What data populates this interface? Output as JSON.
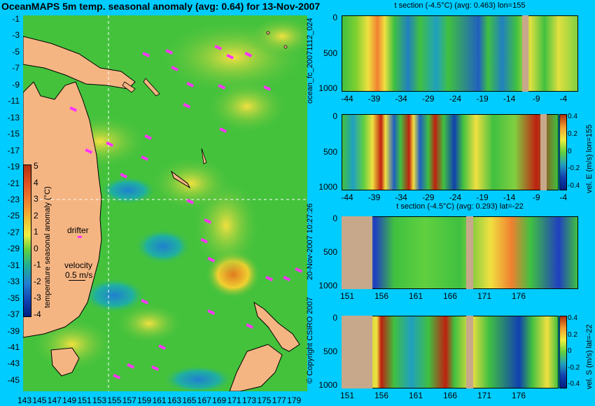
{
  "title": "OceanMAPS 5m temp. seasonal anomaly (avg: 0.64) for 13-Nov-2007",
  "map": {
    "lat_ticks": [
      "-1",
      "-3",
      "-5",
      "-7",
      "-9",
      "-11",
      "-13",
      "-15",
      "-17",
      "-19",
      "-21",
      "-23",
      "-25",
      "-27",
      "-29",
      "-31",
      "-33",
      "-35",
      "-37",
      "-39",
      "-41",
      "-43",
      "-45"
    ],
    "lon_ticks": [
      "143",
      "145",
      "147",
      "149",
      "151",
      "153",
      "155",
      "157",
      "159",
      "161",
      "163",
      "165",
      "167",
      "169",
      "171",
      "173",
      "175",
      "177",
      "179"
    ],
    "colorbar_label": "temperature seasonal anomaly (°C)",
    "colorbar_ticks": [
      "5",
      "4",
      "3",
      "2",
      "1",
      "0",
      "-1",
      "-2",
      "-3",
      "-4"
    ],
    "legend_drifter": "drifter",
    "legend_velocity": "velocity",
    "legend_speed": "0.5 m/s"
  },
  "sections": {
    "p1": {
      "title": "t section (-4.5°C) (avg: 0.463) lon=155",
      "yticks": [
        "0",
        "500",
        "1000"
      ],
      "xticks": [
        "-44",
        "-39",
        "-34",
        "-29",
        "-24",
        "-19",
        "-14",
        "-9",
        "-4"
      ]
    },
    "p2": {
      "yticks": [
        "0",
        "500",
        "1000"
      ],
      "xticks": [
        "-44",
        "-39",
        "-34",
        "-29",
        "-24",
        "-19",
        "-14",
        "-9",
        "-4"
      ],
      "cbar_label": "vel. E (m/s) lon=155",
      "cbar_ticks": [
        "0.4",
        "0.2",
        "0",
        "-0.2",
        "-0.4"
      ]
    },
    "p3": {
      "title": "t section (-4.5°C) (avg: 0.293) lat=-22",
      "yticks": [
        "0",
        "500",
        "1000"
      ],
      "xticks": [
        "151",
        "156",
        "161",
        "166",
        "171",
        "176"
      ]
    },
    "p4": {
      "yticks": [
        "0",
        "500",
        "1000"
      ],
      "xticks": [
        "151",
        "156",
        "161",
        "166",
        "171",
        "176"
      ],
      "cbar_label": "vel. S (m/s) lat=-22",
      "cbar_ticks": [
        "0.4",
        "0.2",
        "0",
        "-0.2",
        "-0.4"
      ]
    }
  },
  "side_texts": {
    "run_id": "ocean_fc_20071112_024",
    "date": "20-Nov-2007 10:27:26",
    "copyright": "© Copyright CSIRO 2007"
  },
  "colors": {
    "background": "#00ccff",
    "land": "#f5b583",
    "ocean": "#40c040",
    "land_section": "#c8a88a",
    "drifter": "#ff33ff"
  }
}
